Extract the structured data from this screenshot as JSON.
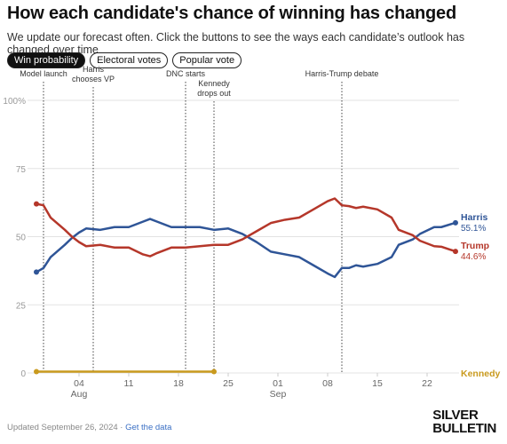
{
  "header": {
    "title": "How each candidate's chance of winning has changed",
    "subtitle": "We update our forecast often. Click the buttons to see the ways each candidate’s outlook has changed over time"
  },
  "buttons": [
    "Win probability",
    "Electoral votes",
    "Popular vote"
  ],
  "chart_data": {
    "type": "line",
    "x": [
      "2024-07-29",
      "2024-07-30",
      "2024-07-31",
      "2024-08-02",
      "2024-08-03",
      "2024-08-04",
      "2024-08-05",
      "2024-08-07",
      "2024-08-09",
      "2024-08-11",
      "2024-08-13",
      "2024-08-14",
      "2024-08-15",
      "2024-08-17",
      "2024-08-19",
      "2024-08-21",
      "2024-08-23",
      "2024-08-25",
      "2024-08-27",
      "2024-08-29",
      "2024-08-31",
      "2024-09-02",
      "2024-09-04",
      "2024-09-06",
      "2024-09-08",
      "2024-09-09",
      "2024-09-10",
      "2024-09-11",
      "2024-09-12",
      "2024-09-13",
      "2024-09-15",
      "2024-09-17",
      "2024-09-18",
      "2024-09-20",
      "2024-09-21",
      "2024-09-23",
      "2024-09-24",
      "2024-09-26"
    ],
    "series": [
      {
        "name": "Harris",
        "color": "#2f5597",
        "values": [
          37,
          38.5,
          42.5,
          47,
          49.5,
          51.5,
          53,
          52.5,
          53.5,
          53.5,
          55.5,
          56.5,
          55.5,
          53.5,
          53.5,
          53.5,
          52.5,
          53,
          51,
          48,
          44.5,
          43.5,
          42.5,
          39.5,
          36.5,
          35.2,
          38.5,
          38.5,
          39.5,
          39,
          40,
          42.5,
          47,
          49,
          51,
          53.5,
          53.5,
          55.1
        ],
        "value_labels": [
          null,
          null,
          null,
          null,
          null,
          null,
          null,
          null,
          null,
          null,
          null,
          null,
          null,
          null,
          null,
          null,
          null,
          null,
          null,
          null,
          null,
          null,
          null,
          null,
          null,
          null,
          null,
          null,
          null,
          null,
          null,
          null,
          null,
          null,
          null,
          null,
          null,
          "55.1%"
        ]
      },
      {
        "name": "Trump",
        "color": "#b5372a",
        "values": [
          62,
          61.5,
          57,
          52.5,
          50,
          48,
          46.5,
          47,
          46,
          46,
          43.5,
          42.8,
          44,
          46,
          46,
          46.5,
          47,
          47,
          49,
          52,
          55,
          56.2,
          57,
          60,
          63,
          64,
          61.5,
          61.2,
          60.5,
          61,
          60,
          57,
          52.5,
          50.5,
          48.5,
          46.5,
          46.3,
          44.6
        ],
        "value_labels": [
          null,
          null,
          null,
          null,
          null,
          null,
          null,
          null,
          null,
          null,
          null,
          null,
          null,
          null,
          null,
          null,
          null,
          null,
          null,
          null,
          null,
          null,
          null,
          null,
          null,
          null,
          null,
          null,
          null,
          null,
          null,
          null,
          null,
          null,
          null,
          null,
          null,
          "44.6%"
        ]
      },
      {
        "name": "Kennedy",
        "color": "#c99a1e",
        "values": [
          0.5,
          0.5,
          0.5,
          0.5,
          0.5,
          0.5,
          0.5,
          0.5,
          0.5,
          0.5,
          0.5,
          0.5,
          0.5,
          0.5,
          0.5,
          0.5,
          0.5,
          null,
          null,
          null,
          null,
          null,
          null,
          null,
          null,
          null,
          null,
          null,
          null,
          null,
          null,
          null,
          null,
          null,
          null,
          null,
          null,
          null
        ]
      }
    ],
    "xlim": [
      "2024-07-29",
      "2024-09-27"
    ],
    "xticks": [
      {
        "value": "2024-08-04",
        "label": "04"
      },
      {
        "value": "2024-08-11",
        "label": "11"
      },
      {
        "value": "2024-08-18",
        "label": "18"
      },
      {
        "value": "2024-08-25",
        "label": "25"
      },
      {
        "value": "2024-09-01",
        "label": "01"
      },
      {
        "value": "2024-09-08",
        "label": "08"
      },
      {
        "value": "2024-09-15",
        "label": "15"
      },
      {
        "value": "2024-09-22",
        "label": "22"
      }
    ],
    "month_labels": [
      {
        "value": "2024-08-04",
        "label": "Aug"
      },
      {
        "value": "2024-09-01",
        "label": "Sep"
      }
    ],
    "ylim": [
      0,
      100
    ],
    "yticks": [
      0,
      25,
      50,
      75,
      {
        "value": 100,
        "label": "100%"
      }
    ],
    "grid": true,
    "events": [
      {
        "date": "2024-07-30",
        "label": [
          "Model launch"
        ]
      },
      {
        "date": "2024-08-06",
        "label": [
          "Harris",
          "chooses VP"
        ]
      },
      {
        "date": "2024-08-19",
        "label": [
          "DNC starts"
        ]
      },
      {
        "date": "2024-08-23",
        "label": [
          "Kennedy",
          "drops out"
        ]
      },
      {
        "date": "2024-09-10",
        "label": [
          "Harris-Trump debate"
        ]
      }
    ]
  },
  "footer": {
    "updated": "Updated September 26, 2024 ·",
    "link": "Get the data"
  },
  "logo": [
    "SILVER",
    "BULLETIN"
  ]
}
